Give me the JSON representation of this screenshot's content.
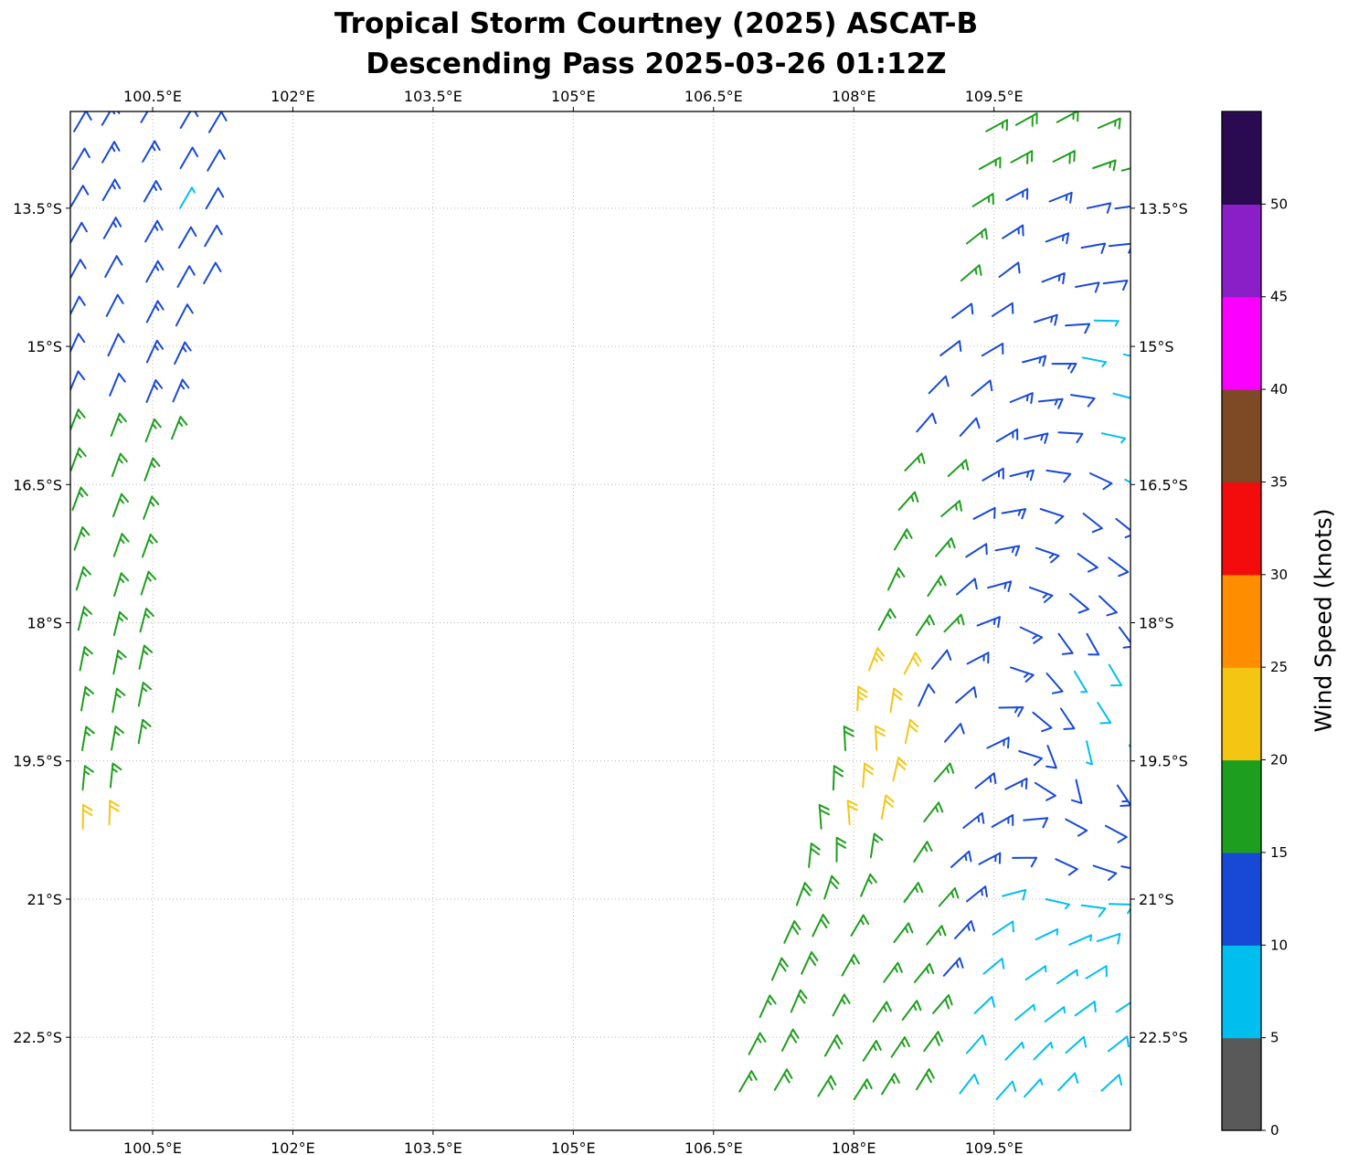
{
  "title": {
    "line1": "Tropical Storm Courtney (2025) ASCAT-B",
    "line2": "Descending Pass 2025-03-26 01:12Z"
  },
  "chart_data": {
    "type": "wind_barbs",
    "title": "Tropical Storm Courtney (2025) ASCAT-B",
    "subtitle": "Descending Pass 2025-03-26 01:12Z",
    "satellite": "ASCAT-B",
    "pass_type": "Descending",
    "datetime_utc": "2025-03-26 01:12Z",
    "grid": true,
    "x_axis": {
      "units": "degrees_east",
      "range": [
        99.62,
        110.96
      ],
      "ticks": [
        100.5,
        102,
        103.5,
        105,
        106.5,
        108,
        109.5
      ],
      "tick_labels": [
        "100.5°E",
        "102°E",
        "103.5°E",
        "105°E",
        "106.5°E",
        "108°E",
        "109.5°E"
      ]
    },
    "y_axis": {
      "units": "degrees_south",
      "range": [
        12.45,
        23.51
      ],
      "ticks": [
        13.5,
        15,
        16.5,
        18,
        19.5,
        21,
        22.5
      ],
      "tick_labels": [
        "13.5°S",
        "15°S",
        "16.5°S",
        "18°S",
        "19.5°S",
        "21°S",
        "22.5°S"
      ]
    },
    "colorbar": {
      "label": "Wind Speed (knots)",
      "tick_values": [
        0,
        5,
        10,
        15,
        20,
        25,
        30,
        35,
        40,
        45,
        50
      ],
      "boundaries": [
        0,
        5,
        10,
        15,
        20,
        25,
        30,
        35,
        40,
        45,
        50,
        55
      ],
      "colors": [
        "#595959",
        "#00bfef",
        "#1849d6",
        "#1e9e1e",
        "#f5c514",
        "#ff8d00",
        "#f40b0b",
        "#7e4a26",
        "#fb00ff",
        "#8a1fc8",
        "#2a0a50"
      ]
    },
    "wind_field": {
      "units": "knots",
      "speed_color_bins": {
        "5-10": "cyan",
        "10-15": "blue",
        "15-20": "green",
        "20-25": "gold"
      },
      "direction_controls": [
        [
          100.4,
          13.0,
          30
        ],
        [
          100.15,
          16.5,
          20
        ],
        [
          99.9,
          19.0,
          10
        ],
        [
          99.85,
          20.4,
          0
        ],
        [
          109.9,
          12.7,
          60
        ],
        [
          109.25,
          14.2,
          48
        ],
        [
          110.85,
          13.8,
          85
        ],
        [
          110.7,
          15.3,
          108
        ],
        [
          110.6,
          16.9,
          132
        ],
        [
          110.5,
          18.3,
          155
        ],
        [
          110.35,
          19.5,
          178
        ],
        [
          110.15,
          20.7,
          120
        ],
        [
          110.0,
          21.9,
          55
        ],
        [
          109.8,
          23.1,
          42
        ],
        [
          108.9,
          15.9,
          38
        ],
        [
          108.35,
          17.6,
          24
        ],
        [
          108.1,
          19.3,
          352
        ],
        [
          107.85,
          20.3,
          350
        ],
        [
          107.3,
          22.1,
          22
        ],
        [
          108.7,
          21.4,
          38
        ],
        [
          109.3,
          19.9,
          50
        ],
        [
          108.6,
          23.2,
          30
        ]
      ],
      "swaths": [
        {
          "name": "west",
          "lat_start": 12.62,
          "lat_end": 20.5,
          "dlat": 0.42,
          "dlon": 0.36,
          "base_speed": 12,
          "left_edge": [
            [
              12.6,
              99.66
            ],
            [
              14.5,
              99.66
            ],
            [
              16.5,
              99.66
            ],
            [
              18.5,
              99.68
            ],
            [
              20.5,
              99.7
            ]
          ],
          "right_edge": [
            [
              12.6,
              101.38
            ],
            [
              13.5,
              101.28
            ],
            [
              14.5,
              101.08
            ],
            [
              15.5,
              100.9
            ],
            [
              16.5,
              100.72
            ],
            [
              17.5,
              100.62
            ],
            [
              18.5,
              100.52
            ],
            [
              19.5,
              100.42
            ],
            [
              20.5,
              100.12
            ]
          ],
          "regions": [
            {
              "lat": [
                13.2,
                13.55
              ],
              "lon": [
                100.5,
                100.85
              ],
              "speed": 8
            },
            {
              "lat": [
                20.05,
                20.6
              ],
              "speed": 21
            },
            {
              "lat": [
                15.78,
                20.6
              ],
              "speed": 16
            }
          ]
        },
        {
          "name": "east",
          "lat_start": 12.62,
          "lat_end": 23.45,
          "dlat": 0.42,
          "dlon": 0.38,
          "base_speed": 12,
          "left_edge": [
            [
              12.6,
              109.42
            ],
            [
              13.5,
              109.3
            ],
            [
              14.5,
              109.18
            ],
            [
              15.5,
              108.88
            ],
            [
              16.5,
              108.55
            ],
            [
              17.5,
              108.4
            ],
            [
              18.5,
              108.12
            ],
            [
              19.5,
              107.8
            ],
            [
              20.5,
              107.5
            ],
            [
              21.5,
              107.22
            ],
            [
              22.5,
              106.95
            ],
            [
              23.45,
              106.75
            ]
          ],
          "right_edge": [
            [
              12.6,
              110.9
            ],
            [
              23.45,
              110.9
            ]
          ],
          "regions": [
            {
              "lat": [
                18.45,
                20.5
              ],
              "lon": [
                107.95,
                108.72
              ],
              "speed": 22
            },
            {
              "leftcols": 1,
              "lat": [
                12.45,
                14.35
              ],
              "speed": 17
            },
            {
              "lat": [
                12.45,
                13.15
              ],
              "lon": [
                109.55,
                111
              ],
              "speed": 17
            },
            {
              "lon": [
                110.5,
                111
              ],
              "lat": [
                14.5,
                16.4
              ],
              "speed": 8
            },
            {
              "lon": [
                110.33,
                111
              ],
              "lat": [
                18.15,
                19.65
              ],
              "speed": 8
            },
            {
              "lat": [
                20.75,
                23.6
              ],
              "lon": [
                109.4,
                111
              ],
              "speed": 8
            },
            {
              "lat": [
                22.05,
                23.6
              ],
              "lon": [
                109.0,
                111
              ],
              "speed": 8
            },
            {
              "leftcols": 2,
              "lat": [
                16.35,
                23.6
              ],
              "speed": 17
            },
            {
              "lat": [
                19.7,
                23.6
              ],
              "lon": [
                106.5,
                108.95
              ],
              "speed": 17
            },
            {
              "lat": [
                17.55,
                18.12
              ],
              "lon": [
                108.3,
                109.05
              ],
              "speed": 17
            }
          ]
        }
      ]
    }
  }
}
